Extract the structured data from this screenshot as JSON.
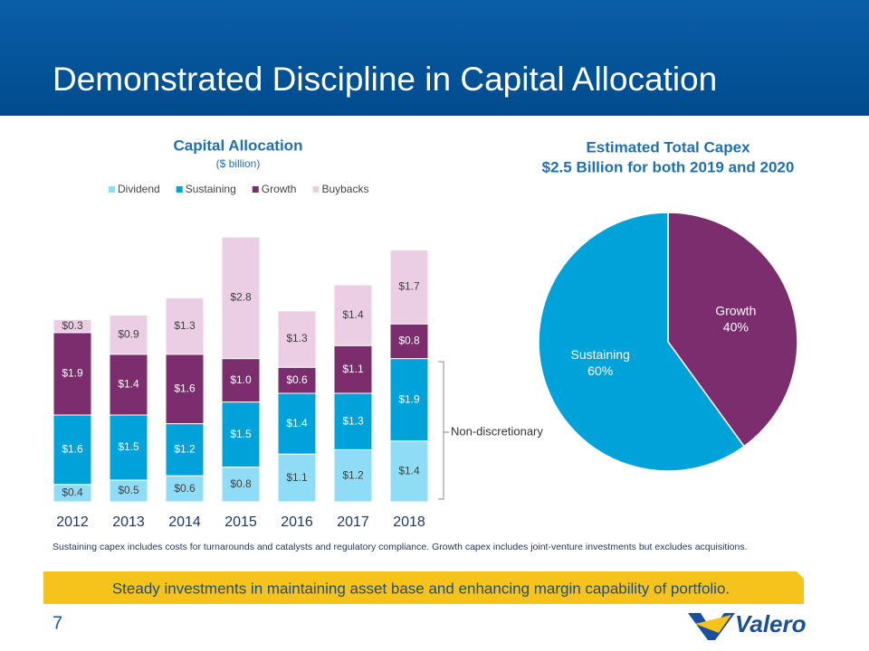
{
  "slide": {
    "title": "Demonstrated Discipline in Capital Allocation",
    "footnote": "Sustaining capex includes costs for turnarounds and catalysts and regulatory compliance. Growth capex includes joint-venture investments but excludes acquisitions.",
    "banner": "Steady investments in maintaining asset base and enhancing margin capability of portfolio.",
    "page_number": "7",
    "logo": "Valero"
  },
  "chart_data": [
    {
      "type": "stacked-bar",
      "title": "Capital Allocation",
      "subtitle": "($ billion)",
      "categories": [
        "2012",
        "2013",
        "2014",
        "2015",
        "2016",
        "2017",
        "2018"
      ],
      "series": [
        {
          "name": "Dividend",
          "color": "#8fdcf7",
          "values": [
            0.4,
            0.5,
            0.6,
            0.8,
            1.1,
            1.2,
            1.4
          ],
          "value_labels": [
            "$0.4",
            "$0.5",
            "$0.6",
            "$0.8",
            "$1.1",
            "$1.2",
            "$1.4"
          ]
        },
        {
          "name": "Sustaining",
          "color": "#00a3d9",
          "values": [
            1.6,
            1.5,
            1.2,
            1.5,
            1.4,
            1.3,
            1.9
          ],
          "value_labels": [
            "$1.6",
            "$1.5",
            "$1.2",
            "$1.5",
            "$1.4",
            "$1.3",
            "$1.9"
          ]
        },
        {
          "name": "Growth",
          "color": "#7b2d6e",
          "values": [
            1.9,
            1.4,
            1.6,
            1.0,
            0.6,
            1.1,
            0.8
          ],
          "value_labels": [
            "$1.9",
            "$1.4",
            "$1.6",
            "$1.0",
            "$0.6",
            "$1.1",
            "$0.8"
          ]
        },
        {
          "name": "Buybacks",
          "color": "#ebcde4",
          "values": [
            0.3,
            0.9,
            1.3,
            2.8,
            1.3,
            1.4,
            1.7
          ],
          "value_labels": [
            "$0.3",
            "$0.9",
            "$1.3",
            "$2.8",
            "$1.3",
            "$1.4",
            "$1.7"
          ]
        }
      ],
      "annotation": "Non-discretionary",
      "legend": "top"
    },
    {
      "type": "pie",
      "title": "Estimated Total Capex",
      "subtitle": "$2.5 Billion for both 2019 and 2020",
      "categories": [
        "Growth",
        "Sustaining"
      ],
      "values": [
        40,
        60
      ],
      "value_labels": [
        "40%",
        "60%"
      ],
      "colors": [
        "#7b2d6e",
        "#00a3d9"
      ]
    }
  ]
}
